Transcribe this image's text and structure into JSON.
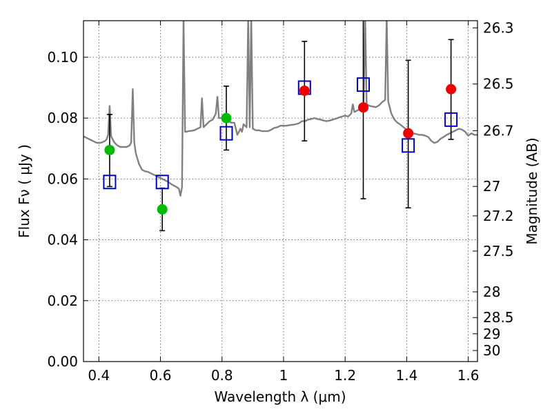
{
  "chart_data": {
    "type": "scatter",
    "xlabel": "Wavelength  λ (μm)",
    "ylabel": "Flux  Fν  ( μJy )",
    "y2label": "Magnitude (AB)",
    "xlim": [
      0.35,
      1.63
    ],
    "ylim": [
      0.0,
      0.112
    ],
    "grid": true,
    "x_ticks": [
      0.4,
      0.6,
      0.8,
      1.0,
      1.2,
      1.4,
      1.6
    ],
    "x_tick_labels": [
      "0.4",
      "0.6",
      "0.8",
      "1",
      "1.2",
      "1.4",
      "1.6"
    ],
    "y_ticks": [
      0.0,
      0.02,
      0.04,
      0.06,
      0.08,
      0.1
    ],
    "y_tick_labels": [
      "0.00",
      "0.02",
      "0.04",
      "0.06",
      "0.08",
      "0.10"
    ],
    "mag_ticks": [
      {
        "mag": 26.3,
        "label": "26.3"
      },
      {
        "mag": 26.5,
        "label": "26.5"
      },
      {
        "mag": 26.7,
        "label": "26.7"
      },
      {
        "mag": 27.0,
        "label": "27"
      },
      {
        "mag": 27.2,
        "label": "27.2"
      },
      {
        "mag": 27.5,
        "label": "27.5"
      },
      {
        "mag": 28.0,
        "label": "28"
      },
      {
        "mag": 28.5,
        "label": "28.5"
      },
      {
        "mag": 29.0,
        "label": "29"
      },
      {
        "mag": 30.0,
        "label": "30"
      }
    ],
    "colors": {
      "model": "#808080",
      "green": "#00bb00",
      "red": "#ee0000",
      "square": "#0000bb",
      "errorbar": "#000000"
    },
    "model_spectrum": [
      [
        0.35,
        0.074
      ],
      [
        0.36,
        0.0735
      ],
      [
        0.37,
        0.073
      ],
      [
        0.38,
        0.0725
      ],
      [
        0.39,
        0.072
      ],
      [
        0.4,
        0.0718
      ],
      [
        0.41,
        0.072
      ],
      [
        0.42,
        0.0725
      ],
      [
        0.425,
        0.073
      ],
      [
        0.43,
        0.0745
      ],
      [
        0.435,
        0.084
      ],
      [
        0.44,
        0.074
      ],
      [
        0.45,
        0.072
      ],
      [
        0.46,
        0.071
      ],
      [
        0.47,
        0.0705
      ],
      [
        0.48,
        0.0705
      ],
      [
        0.49,
        0.0705
      ],
      [
        0.5,
        0.071
      ],
      [
        0.505,
        0.072
      ],
      [
        0.51,
        0.0895
      ],
      [
        0.515,
        0.072
      ],
      [
        0.52,
        0.0685
      ],
      [
        0.53,
        0.065
      ],
      [
        0.54,
        0.063
      ],
      [
        0.55,
        0.0625
      ],
      [
        0.56,
        0.0623
      ],
      [
        0.57,
        0.0618
      ],
      [
        0.58,
        0.0613
      ],
      [
        0.59,
        0.0608
      ],
      [
        0.6,
        0.0603
      ],
      [
        0.61,
        0.0598
      ],
      [
        0.62,
        0.0593
      ],
      [
        0.63,
        0.0587
      ],
      [
        0.64,
        0.058
      ],
      [
        0.65,
        0.0575
      ],
      [
        0.66,
        0.0568
      ],
      [
        0.665,
        0.0545
      ],
      [
        0.67,
        0.0573
      ],
      [
        0.675,
        0.113
      ],
      [
        0.68,
        0.0755
      ],
      [
        0.685,
        0.0755
      ],
      [
        0.69,
        0.0757
      ],
      [
        0.7,
        0.0758
      ],
      [
        0.71,
        0.076
      ],
      [
        0.72,
        0.0765
      ],
      [
        0.73,
        0.077
      ],
      [
        0.735,
        0.0865
      ],
      [
        0.74,
        0.077
      ],
      [
        0.75,
        0.078
      ],
      [
        0.76,
        0.079
      ],
      [
        0.77,
        0.0795
      ],
      [
        0.78,
        0.0815
      ],
      [
        0.785,
        0.087
      ],
      [
        0.79,
        0.08
      ],
      [
        0.8,
        0.08
      ],
      [
        0.81,
        0.0795
      ],
      [
        0.82,
        0.079
      ],
      [
        0.83,
        0.0785
      ],
      [
        0.84,
        0.0785
      ],
      [
        0.85,
        0.0745
      ],
      [
        0.86,
        0.0765
      ],
      [
        0.865,
        0.0755
      ],
      [
        0.87,
        0.078
      ],
      [
        0.88,
        0.077
      ],
      [
        0.885,
        0.113
      ],
      [
        0.89,
        0.077
      ],
      [
        0.895,
        0.113
      ],
      [
        0.9,
        0.0765
      ],
      [
        0.91,
        0.076
      ],
      [
        0.92,
        0.076
      ],
      [
        0.93,
        0.0757
      ],
      [
        0.94,
        0.0757
      ],
      [
        0.95,
        0.0757
      ],
      [
        0.96,
        0.0762
      ],
      [
        0.97,
        0.0768
      ],
      [
        0.98,
        0.077
      ],
      [
        0.99,
        0.0775
      ],
      [
        1.0,
        0.0775
      ],
      [
        1.01,
        0.0775
      ],
      [
        1.02,
        0.0777
      ],
      [
        1.03,
        0.0778
      ],
      [
        1.04,
        0.078
      ],
      [
        1.05,
        0.0783
      ],
      [
        1.06,
        0.079
      ],
      [
        1.07,
        0.079
      ],
      [
        1.08,
        0.0795
      ],
      [
        1.09,
        0.0797
      ],
      [
        1.1,
        0.08
      ],
      [
        1.11,
        0.0797
      ],
      [
        1.12,
        0.0795
      ],
      [
        1.13,
        0.0792
      ],
      [
        1.14,
        0.079
      ],
      [
        1.15,
        0.0792
      ],
      [
        1.16,
        0.0795
      ],
      [
        1.17,
        0.0798
      ],
      [
        1.18,
        0.0802
      ],
      [
        1.19,
        0.0805
      ],
      [
        1.2,
        0.0808
      ],
      [
        1.21,
        0.0805
      ],
      [
        1.22,
        0.0815
      ],
      [
        1.225,
        0.0845
      ],
      [
        1.23,
        0.082
      ],
      [
        1.24,
        0.0825
      ],
      [
        1.25,
        0.083
      ],
      [
        1.26,
        0.0835
      ],
      [
        1.265,
        0.113
      ],
      [
        1.27,
        0.0845
      ],
      [
        1.28,
        0.084
      ],
      [
        1.29,
        0.0838
      ],
      [
        1.3,
        0.0836
      ],
      [
        1.31,
        0.0842
      ],
      [
        1.32,
        0.0852
      ],
      [
        1.33,
        0.086
      ],
      [
        1.335,
        0.113
      ],
      [
        1.34,
        0.0855
      ],
      [
        1.35,
        0.0815
      ],
      [
        1.36,
        0.0795
      ],
      [
        1.37,
        0.0785
      ],
      [
        1.38,
        0.0778
      ],
      [
        1.39,
        0.077
      ],
      [
        1.4,
        0.0762
      ],
      [
        1.41,
        0.0755
      ],
      [
        1.42,
        0.075
      ],
      [
        1.43,
        0.0748
      ],
      [
        1.44,
        0.0745
      ],
      [
        1.45,
        0.0745
      ],
      [
        1.46,
        0.0742
      ],
      [
        1.47,
        0.0738
      ],
      [
        1.48,
        0.0725
      ],
      [
        1.49,
        0.0718
      ],
      [
        1.5,
        0.0722
      ],
      [
        1.51,
        0.0732
      ],
      [
        1.52,
        0.0738
      ],
      [
        1.53,
        0.0745
      ],
      [
        1.54,
        0.075
      ],
      [
        1.55,
        0.0755
      ],
      [
        1.56,
        0.076
      ],
      [
        1.57,
        0.0765
      ],
      [
        1.58,
        0.0762
      ],
      [
        1.59,
        0.0755
      ],
      [
        1.6,
        0.0742
      ],
      [
        1.61,
        0.075
      ],
      [
        1.62,
        0.0745
      ],
      [
        1.63,
        0.0745
      ]
    ],
    "model_squares": [
      {
        "x": 0.435,
        "y": 0.059
      },
      {
        "x": 0.606,
        "y": 0.059
      },
      {
        "x": 0.814,
        "y": 0.075
      },
      {
        "x": 1.068,
        "y": 0.09
      },
      {
        "x": 1.259,
        "y": 0.091
      },
      {
        "x": 1.405,
        "y": 0.071
      },
      {
        "x": 1.544,
        "y": 0.0795
      }
    ],
    "observed_green": [
      {
        "x": 0.435,
        "y": 0.0695,
        "ylow": 0.0575,
        "yhigh": 0.0812
      },
      {
        "x": 0.606,
        "y": 0.05,
        "ylow": 0.043,
        "yhigh": 0.057
      },
      {
        "x": 0.814,
        "y": 0.08,
        "ylow": 0.0695,
        "yhigh": 0.0905
      }
    ],
    "observed_red": [
      {
        "x": 1.068,
        "y": 0.089,
        "ylow": 0.0725,
        "yhigh": 0.1052
      },
      {
        "x": 1.259,
        "y": 0.0835,
        "ylow": 0.0535,
        "yhigh": 0.1125
      },
      {
        "x": 1.405,
        "y": 0.075,
        "ylow": 0.0505,
        "yhigh": 0.099
      },
      {
        "x": 1.544,
        "y": 0.0895,
        "ylow": 0.073,
        "yhigh": 0.1058
      }
    ]
  }
}
